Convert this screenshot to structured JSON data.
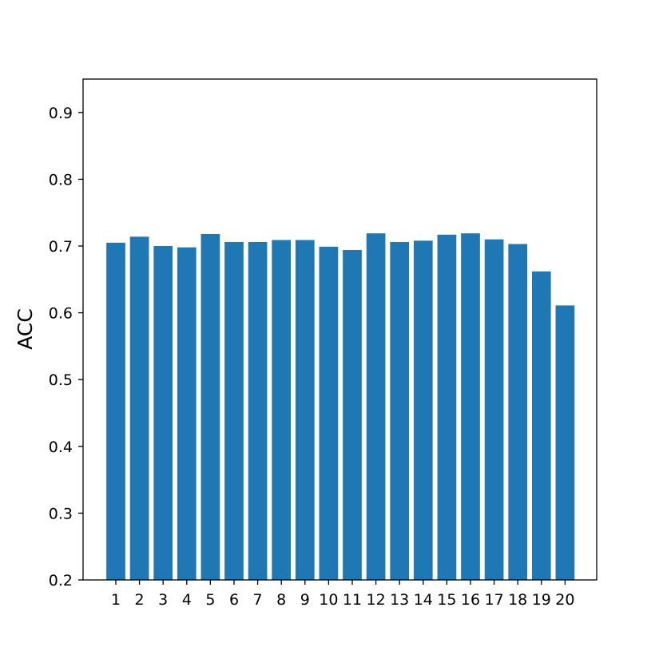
{
  "chart_data": {
    "type": "bar",
    "title": "",
    "xlabel": "",
    "ylabel": "ACC",
    "categories": [
      "1",
      "2",
      "3",
      "4",
      "5",
      "6",
      "7",
      "8",
      "9",
      "10",
      "11",
      "12",
      "13",
      "14",
      "15",
      "16",
      "17",
      "18",
      "19",
      "20"
    ],
    "values": [
      0.705,
      0.714,
      0.7,
      0.698,
      0.718,
      0.706,
      0.706,
      0.709,
      0.709,
      0.699,
      0.694,
      0.719,
      0.706,
      0.708,
      0.717,
      0.719,
      0.71,
      0.703,
      0.662,
      0.611
    ],
    "ylim": [
      0.2,
      0.95
    ],
    "yticks": [
      "0.2",
      "0.3",
      "0.4",
      "0.5",
      "0.6",
      "0.7",
      "0.8",
      "0.9"
    ],
    "grid": false,
    "bar_color": "#1f77b4"
  }
}
